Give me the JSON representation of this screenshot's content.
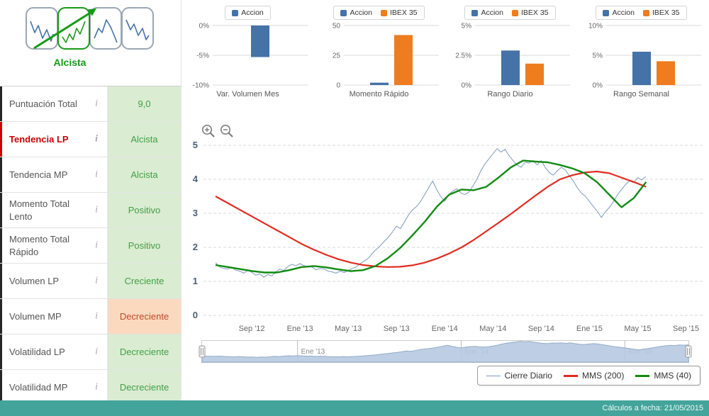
{
  "colors": {
    "accent_blue": "#4572a7",
    "accent_orange": "#ef7c1f",
    "close_line": "#7b9bbd",
    "mms200": "#e02b20",
    "mms40": "#118a11",
    "positive_bg": "#daecd2",
    "positive_text": "#41a046",
    "negative_bg": "#fbd9bf",
    "negative_text": "#bf4a26",
    "trend_green": "#169a16",
    "alert_red": "#cc0000",
    "navigator_fill": "#b7c9e1",
    "navigator_stroke": "#93acc9",
    "footer_bg": "#43a49b"
  },
  "icons": {
    "info": "i"
  },
  "header_panel": {
    "trend_label": "Alcista",
    "patterns": [
      {
        "icon": "pattern-volatile-icon",
        "selected": false
      },
      {
        "icon": "pattern-uptrend-icon",
        "selected": true
      },
      {
        "icon": "pattern-peak-icon",
        "selected": false
      },
      {
        "icon": "pattern-downtrend-icon",
        "selected": false
      }
    ]
  },
  "indicators": [
    {
      "label": "Puntuación Total",
      "value": "9,0",
      "state": "positive",
      "alert": false
    },
    {
      "label": "Tendencia LP",
      "value": "Alcista",
      "state": "positive",
      "alert": true
    },
    {
      "label": "Tendencia MP",
      "value": "Alcista",
      "state": "positive",
      "alert": false
    },
    {
      "label": "Momento Total Lento",
      "value": "Positivo",
      "state": "positive",
      "alert": false
    },
    {
      "label": "Momento Total Rápido",
      "value": "Positivo",
      "state": "positive",
      "alert": false
    },
    {
      "label": "Volumen LP",
      "value": "Creciente",
      "state": "positive",
      "alert": false
    },
    {
      "label": "Volumen MP",
      "value": "Decreciente",
      "state": "negative",
      "alert": false
    },
    {
      "label": "Volatilidad LP",
      "value": "Decreciente",
      "state": "positive",
      "alert": false
    },
    {
      "label": "Volatilidad MP",
      "value": "Decreciente",
      "state": "positive",
      "alert": false
    }
  ],
  "chart_data": [
    {
      "id": "var-volumen-mes",
      "type": "bar",
      "title": "Var. Volumen Mes",
      "series": [
        {
          "name": "Accion",
          "value": -5.3
        }
      ],
      "ylim": [
        -10,
        0
      ],
      "yticks": [
        {
          "v": 0,
          "label": "0%"
        },
        {
          "v": -5,
          "label": "-5%"
        },
        {
          "v": -10,
          "label": "-10%"
        }
      ]
    },
    {
      "id": "momento-rapido",
      "type": "bar",
      "title": "Momento Rápido",
      "series": [
        {
          "name": "Accion",
          "value": 2
        },
        {
          "name": "IBEX 35",
          "value": 42
        }
      ],
      "ylim": [
        0,
        50
      ],
      "yticks": [
        {
          "v": 0,
          "label": "0"
        },
        {
          "v": 25,
          "label": "25"
        },
        {
          "v": 50,
          "label": "50"
        }
      ]
    },
    {
      "id": "rango-diario",
      "type": "bar",
      "title": "Rango Diario",
      "series": [
        {
          "name": "Accion",
          "value": 2.9
        },
        {
          "name": "IBEX 35",
          "value": 1.8
        }
      ],
      "ylim": [
        0,
        5
      ],
      "yticks": [
        {
          "v": 0,
          "label": "0%"
        },
        {
          "v": 2.5,
          "label": "2.5%"
        },
        {
          "v": 5,
          "label": "5%"
        }
      ]
    },
    {
      "id": "rango-semanal",
      "type": "bar",
      "title": "Rango Semanal",
      "series": [
        {
          "name": "Accion",
          "value": 5.6
        },
        {
          "name": "IBEX 35",
          "value": 4.0
        }
      ],
      "ylim": [
        0,
        10
      ],
      "yticks": [
        {
          "v": 0,
          "label": "0%"
        },
        {
          "v": 5,
          "label": "5%"
        },
        {
          "v": 10,
          "label": "10%"
        }
      ]
    },
    {
      "id": "precio-historico",
      "type": "line",
      "ylim": [
        0,
        5
      ],
      "yticks": [
        0,
        1,
        2,
        3,
        4,
        5
      ],
      "x_ticks": [
        {
          "m": 3,
          "label": "Sep '12"
        },
        {
          "m": 7,
          "label": "Ene '13"
        },
        {
          "m": 11,
          "label": "May '13"
        },
        {
          "m": 15,
          "label": "Sep '13"
        },
        {
          "m": 19,
          "label": "Ene '14"
        },
        {
          "m": 23,
          "label": "May '14"
        },
        {
          "m": 27,
          "label": "Sep '14"
        },
        {
          "m": 31,
          "label": "Ene '15"
        },
        {
          "m": 35,
          "label": "May '15"
        },
        {
          "m": 39,
          "label": "Sep '15"
        }
      ],
      "series": [
        {
          "name": "Cierre Diario",
          "color_key": "close_line",
          "x_start": 0,
          "x_step": 0.3333,
          "values": [
            1.55,
            1.42,
            1.38,
            1.36,
            1.42,
            1.33,
            1.3,
            1.24,
            1.32,
            1.27,
            1.18,
            1.22,
            1.12,
            1.2,
            1.16,
            1.28,
            1.36,
            1.32,
            1.44,
            1.5,
            1.46,
            1.52,
            1.46,
            1.42,
            1.42,
            1.34,
            1.38,
            1.36,
            1.3,
            1.28,
            1.24,
            1.3,
            1.26,
            1.32,
            1.38,
            1.42,
            1.52,
            1.6,
            1.68,
            1.82,
            1.94,
            2.05,
            2.18,
            2.3,
            2.45,
            2.62,
            2.55,
            2.75,
            2.95,
            3.1,
            3.2,
            3.35,
            3.55,
            3.75,
            3.95,
            3.7,
            3.5,
            3.35,
            3.55,
            3.65,
            3.72,
            3.6,
            3.55,
            3.62,
            3.8,
            4.0,
            4.25,
            4.45,
            4.6,
            4.75,
            4.9,
            4.8,
            4.88,
            4.7,
            4.55,
            4.42,
            4.35,
            4.5,
            4.48,
            4.55,
            4.42,
            4.55,
            4.35,
            4.2,
            4.12,
            4.25,
            4.35,
            4.28,
            4.1,
            3.95,
            3.75,
            3.6,
            3.5,
            3.35,
            3.2,
            3.05,
            2.88,
            3.05,
            3.18,
            3.35,
            3.55,
            3.7,
            3.85,
            3.95,
            3.9,
            4.05,
            3.98,
            4.08
          ]
        },
        {
          "name": "MMS (200)",
          "color_key": "mms200",
          "x_start": 0,
          "x_step": 1.02,
          "values": [
            3.5,
            3.3,
            3.1,
            2.9,
            2.7,
            2.5,
            2.3,
            2.1,
            1.93,
            1.78,
            1.65,
            1.55,
            1.48,
            1.44,
            1.42,
            1.43,
            1.47,
            1.55,
            1.67,
            1.82,
            2.0,
            2.22,
            2.47,
            2.72,
            2.98,
            3.25,
            3.52,
            3.78,
            4.0,
            4.12,
            4.2,
            4.23,
            4.18,
            4.05,
            3.92,
            3.78
          ]
        },
        {
          "name": "MMS (40)",
          "color_key": "mms40",
          "x_start": 0,
          "x_step": 1.02,
          "values": [
            1.48,
            1.42,
            1.36,
            1.3,
            1.26,
            1.26,
            1.33,
            1.42,
            1.45,
            1.41,
            1.35,
            1.3,
            1.33,
            1.45,
            1.68,
            1.98,
            2.35,
            2.75,
            3.2,
            3.55,
            3.7,
            3.68,
            3.78,
            4.05,
            4.35,
            4.55,
            4.52,
            4.5,
            4.42,
            4.32,
            4.18,
            3.92,
            3.55,
            3.18,
            3.45,
            3.92
          ]
        }
      ]
    }
  ],
  "navigator": {
    "gridlines": [
      {
        "m": 7,
        "label": "Ene '13"
      },
      {
        "m": 19,
        "label": "Ene '14"
      },
      {
        "m": 31,
        "label": "Ene '15"
      }
    ]
  },
  "footer": {
    "text": "Cálculos a fecha: 21/05/2015"
  }
}
